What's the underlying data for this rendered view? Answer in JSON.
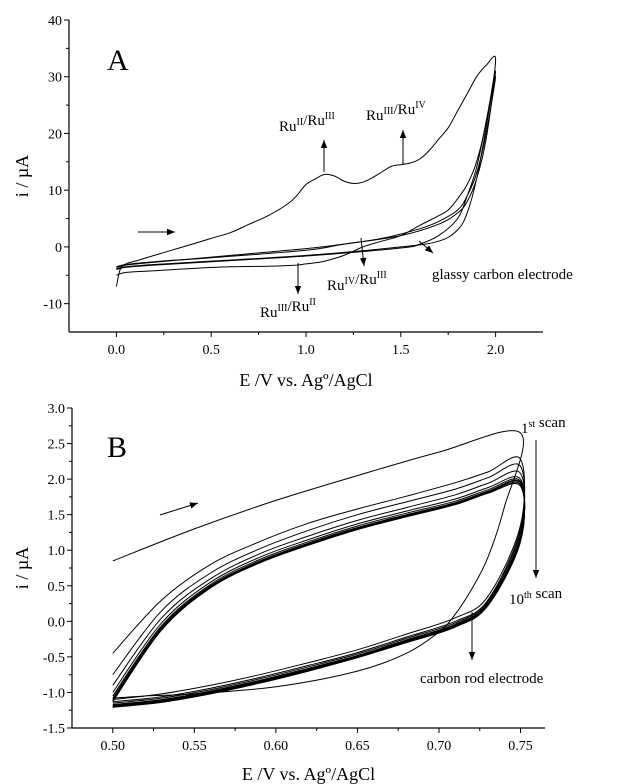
{
  "chart_data": [
    {
      "type": "line",
      "panel_label": "A",
      "xlabel": "E /V vs. Agº/AgCl",
      "ylabel": "i / µA",
      "xlim": [
        -0.25,
        2.25
      ],
      "ylim": [
        -15,
        40
      ],
      "xticks": [
        0.0,
        0.5,
        1.0,
        1.5,
        2.0
      ],
      "xticklabels": [
        "0.0",
        "0.5",
        "1.0",
        "1.5",
        "2.0"
      ],
      "yticks": [
        -10,
        0,
        10,
        20,
        30,
        40
      ],
      "yticklabels": [
        "-10",
        "0",
        "10",
        "20",
        "30",
        "40"
      ],
      "series": [
        {
          "x": [
            0.0,
            0.02,
            0.05,
            0.1,
            0.2,
            0.3,
            0.4,
            0.5,
            0.6,
            0.7,
            0.8,
            0.9,
            0.95,
            1.0,
            1.05,
            1.1,
            1.15,
            1.2,
            1.25,
            1.3,
            1.35,
            1.4,
            1.45,
            1.5,
            1.55,
            1.6,
            1.65,
            1.7,
            1.75,
            1.8,
            1.85,
            1.9,
            1.95,
            2.0,
            1.95,
            1.9,
            1.85,
            1.8,
            1.75,
            1.7,
            1.6,
            1.5,
            1.4,
            1.3,
            1.2,
            1.1,
            1.05,
            1.0,
            0.95,
            0.9,
            0.8,
            0.6,
            0.4,
            0.2,
            0.05,
            0.0
          ],
          "y": [
            -7,
            -4,
            -3,
            -2.5,
            -1.5,
            -0.5,
            0.5,
            1.5,
            2.5,
            4,
            5.5,
            7.5,
            9,
            11,
            12,
            12.8,
            12.5,
            11.6,
            11.2,
            11.4,
            12.2,
            13.2,
            14.2,
            14.5,
            14.8,
            15.5,
            17,
            19,
            21,
            24,
            27,
            30,
            32,
            33,
            22,
            15,
            11,
            8.5,
            6.5,
            5.5,
            3.8,
            2,
            1,
            0,
            -1.5,
            -2.5,
            -2.8,
            -3,
            -3.2,
            -3.3,
            -3.4,
            -3.5,
            -3.8,
            -4.2,
            -4.5,
            -5
          ]
        },
        {
          "x": [
            0.0,
            0.05,
            0.2,
            0.5,
            1.0,
            1.5,
            1.6,
            1.7,
            1.8,
            1.85,
            1.9,
            1.95,
            2.0,
            1.95,
            1.9,
            1.85,
            1.8,
            1.7,
            1.6,
            1.4,
            1.2,
            1.0,
            0.5,
            0.2,
            0.05,
            0.0
          ],
          "y": [
            -4,
            -3.6,
            -3.2,
            -2.6,
            -1.6,
            -0.2,
            0.5,
            2,
            5,
            9,
            14,
            22,
            30,
            20,
            13,
            9,
            6.5,
            4.5,
            3.2,
            1.5,
            0.5,
            -0.6,
            -1.9,
            -2.6,
            -3.1,
            -3.5
          ]
        },
        {
          "x": [
            0.0,
            0.05,
            0.2,
            0.5,
            1.0,
            1.5,
            1.7,
            1.8,
            1.85,
            1.9,
            1.95,
            2.0,
            1.95,
            1.9,
            1.85,
            1.8,
            1.7,
            1.5,
            1.2,
            1.0,
            0.5,
            0.2,
            0.05,
            0.0
          ],
          "y": [
            -3.8,
            -3.5,
            -3.1,
            -2.5,
            -1.5,
            0,
            1,
            3,
            6,
            12,
            21,
            31,
            19,
            12,
            8,
            6,
            4,
            2,
            0.5,
            -0.3,
            -1.8,
            -2.7,
            -3.2,
            -3.6
          ]
        }
      ],
      "annotations": [
        {
          "text": "RuII/RuIII",
          "base": "Ru",
          "sup1": "II",
          "mid": "/Ru",
          "sup2": "III"
        },
        {
          "text": "RuIII/RuIV",
          "base": "Ru",
          "sup1": "III",
          "mid": "/Ru",
          "sup2": "IV"
        },
        {
          "text": "RuIV/RuIII",
          "base": "Ru",
          "sup1": "IV",
          "mid": "/Ru",
          "sup2": "III"
        },
        {
          "text": "RuIII/RuII",
          "base": "Ru",
          "sup1": "III",
          "mid": "/Ru",
          "sup2": "II"
        },
        {
          "text": "glassy carbon electrode"
        }
      ]
    },
    {
      "type": "line",
      "panel_label": "B",
      "xlabel": "E /V vs. Agº/AgCl",
      "ylabel": "i / µA",
      "xlim": [
        0.475,
        0.765
      ],
      "ylim": [
        -1.5,
        3.0
      ],
      "xticks": [
        0.5,
        0.55,
        0.6,
        0.65,
        0.7,
        0.75
      ],
      "xticklabels": [
        "0.50",
        "0.55",
        "0.60",
        "0.65",
        "0.70",
        "0.75"
      ],
      "yticks": [
        -1.5,
        -1.0,
        -0.5,
        0.0,
        0.5,
        1.0,
        1.5,
        2.0,
        2.5,
        3.0
      ],
      "yticklabels": [
        "-1.5",
        "-1.0",
        "-0.5",
        "0.0",
        "0.5",
        "1.0",
        "1.5",
        "2.0",
        "2.5",
        "3.0"
      ],
      "first_scan": {
        "x": [
          0.5,
          0.55,
          0.6,
          0.65,
          0.7,
          0.75,
          0.74,
          0.73,
          0.72,
          0.71,
          0.7,
          0.68,
          0.65,
          0.6,
          0.55,
          0.52,
          0.5
        ],
        "y": [
          0.85,
          1.3,
          1.7,
          2.05,
          2.38,
          2.65,
          1.6,
          0.9,
          0.45,
          0.1,
          -0.15,
          -0.45,
          -0.7,
          -0.92,
          -1.02,
          -1.05,
          -1.08
        ]
      },
      "scans": [
        {
          "scale": 0.0,
          "top": [
            -0.45,
            0.3,
            0.8,
            1.12,
            1.38,
            1.58,
            1.76,
            1.95,
            2.1,
            2.28
          ],
          "bottom": [
            -1.1,
            -1.02,
            -0.9,
            -0.75,
            -0.58,
            -0.4,
            -0.18,
            0.05,
            0.35,
            1.35
          ]
        },
        {
          "scale": 1,
          "top": [
            -0.75,
            0.15,
            0.68,
            1.02,
            1.28,
            1.5,
            1.68,
            1.86,
            2.02,
            2.18
          ],
          "bottom": [
            -1.13,
            -1.06,
            -0.94,
            -0.79,
            -0.62,
            -0.44,
            -0.22,
            0.0,
            0.3,
            1.3
          ]
        },
        {
          "scale": 2,
          "top": [
            -0.9,
            0.05,
            0.6,
            0.95,
            1.2,
            1.42,
            1.6,
            1.78,
            1.94,
            2.08
          ],
          "bottom": [
            -1.15,
            -1.08,
            -0.96,
            -0.81,
            -0.64,
            -0.46,
            -0.24,
            -0.02,
            0.28,
            1.25
          ]
        },
        {
          "scale": 3,
          "top": [
            -1.0,
            -0.02,
            0.55,
            0.9,
            1.15,
            1.37,
            1.55,
            1.72,
            1.88,
            2.0
          ],
          "bottom": [
            -1.17,
            -1.1,
            -0.98,
            -0.83,
            -0.66,
            -0.48,
            -0.26,
            -0.04,
            0.26,
            1.2
          ]
        },
        {
          "scale": 4,
          "top": [
            -1.05,
            -0.06,
            0.52,
            0.87,
            1.12,
            1.34,
            1.52,
            1.69,
            1.85,
            1.97
          ],
          "bottom": [
            -1.18,
            -1.11,
            -0.99,
            -0.84,
            -0.67,
            -0.49,
            -0.27,
            -0.05,
            0.25,
            1.18
          ]
        },
        {
          "scale": 5,
          "top": [
            -1.08,
            -0.08,
            0.5,
            0.85,
            1.1,
            1.32,
            1.5,
            1.67,
            1.83,
            1.95
          ],
          "bottom": [
            -1.19,
            -1.12,
            -1.0,
            -0.85,
            -0.68,
            -0.5,
            -0.28,
            -0.06,
            0.24,
            1.16
          ]
        },
        {
          "scale": 6,
          "top": [
            -1.1,
            -0.1,
            0.49,
            0.84,
            1.09,
            1.31,
            1.49,
            1.66,
            1.82,
            1.94
          ],
          "bottom": [
            -1.2,
            -1.13,
            -1.0,
            -0.86,
            -0.69,
            -0.5,
            -0.29,
            -0.07,
            0.23,
            1.15
          ]
        },
        {
          "scale": 7,
          "top": [
            -1.12,
            -0.11,
            0.48,
            0.83,
            1.08,
            1.3,
            1.48,
            1.65,
            1.81,
            1.92
          ],
          "bottom": [
            -1.2,
            -1.13,
            -1.01,
            -0.86,
            -0.69,
            -0.51,
            -0.29,
            -0.07,
            0.23,
            1.14
          ]
        },
        {
          "scale": 8,
          "top": [
            -1.13,
            -0.12,
            0.47,
            0.82,
            1.07,
            1.29,
            1.47,
            1.64,
            1.8,
            1.9
          ],
          "bottom": [
            -1.21,
            -1.14,
            -1.02,
            -0.87,
            -0.7,
            -0.51,
            -0.3,
            -0.08,
            0.22,
            1.12
          ]
        }
      ],
      "scan_x": [
        0.5,
        0.53,
        0.56,
        0.59,
        0.62,
        0.65,
        0.68,
        0.71,
        0.73,
        0.75
      ],
      "annotations": [
        {
          "text": "1st scan",
          "base": "1",
          "sup": "st",
          "rest": " scan"
        },
        {
          "text": "10th scan",
          "base": "10",
          "sup": "th",
          "rest": " scan"
        },
        {
          "text": "carbon rod electrode"
        }
      ]
    }
  ]
}
